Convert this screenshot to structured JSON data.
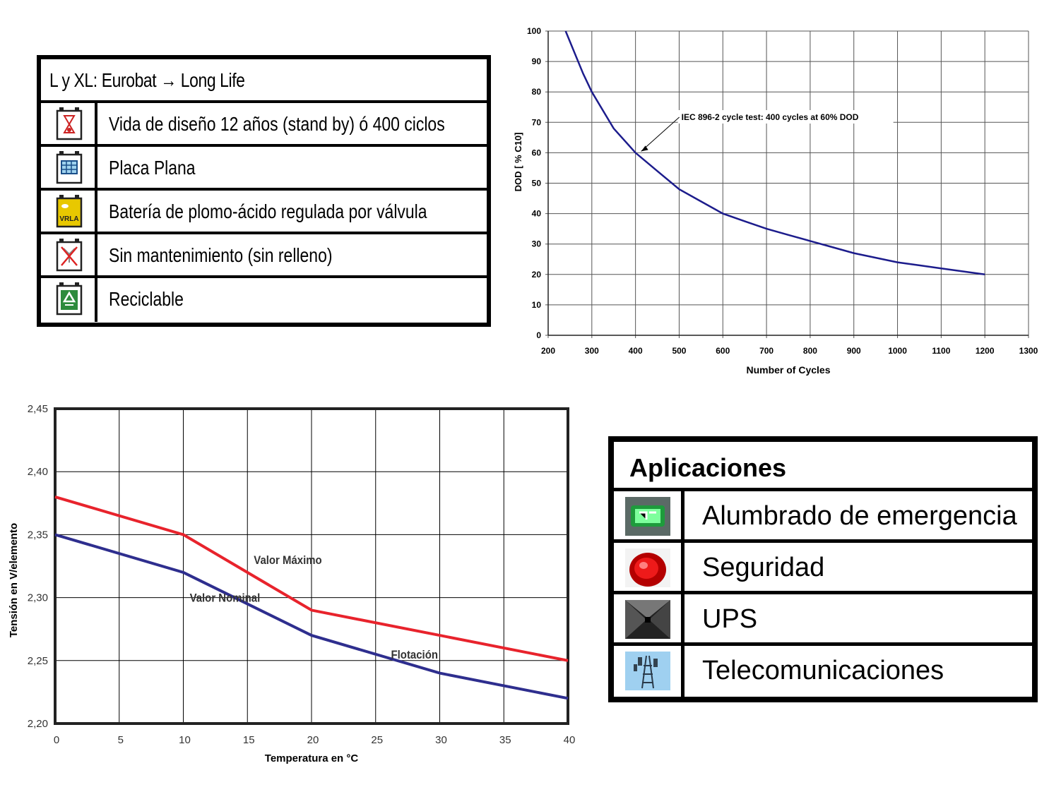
{
  "features": {
    "title": "L y XL: Eurobat → Long Life",
    "rows": [
      {
        "icon": "hourglass-icon",
        "label": "Vida de diseño 12 años (stand by) ó 400 ciclos"
      },
      {
        "icon": "flat-plate-icon",
        "label": "Placa Plana"
      },
      {
        "icon": "vrla-icon",
        "icon_text": "VRLA",
        "label": "Batería de plomo-ácido regulada por válvula"
      },
      {
        "icon": "no-refill-icon",
        "label": "Sin mantenimiento (sin relleno)"
      },
      {
        "icon": "recycle-icon",
        "label": "Reciclable"
      }
    ]
  },
  "applications": {
    "title": "Aplicaciones",
    "rows": [
      {
        "icon": "emergency-light-photo",
        "label": "Alumbrado de emergencia"
      },
      {
        "icon": "security-beacon-photo",
        "label": "Seguridad"
      },
      {
        "icon": "ups-photo",
        "label": "UPS"
      },
      {
        "icon": "telecom-tower-photo",
        "label": "Telecomunicaciones"
      }
    ]
  },
  "chart_data": [
    {
      "type": "line",
      "title": "",
      "xlabel": "Number of Cycles",
      "ylabel": "DOD [ % C10]",
      "xlim": [
        200,
        1300
      ],
      "ylim": [
        0,
        100
      ],
      "x_ticks": [
        "200",
        "300",
        "400",
        "500",
        "600",
        "700",
        "800",
        "900",
        "1000",
        "1100",
        "1200",
        "1300"
      ],
      "y_ticks": [
        "0",
        "10",
        "20",
        "30",
        "40",
        "50",
        "60",
        "70",
        "80",
        "90",
        "100"
      ],
      "grid": true,
      "series": [
        {
          "color": "#1c1c8c",
          "x": [
            240,
            260,
            280,
            300,
            325,
            350,
            375,
            400,
            450,
            500,
            550,
            600,
            650,
            700,
            750,
            800,
            850,
            900,
            950,
            1000,
            1050,
            1100,
            1150,
            1200
          ],
          "y": [
            100,
            93,
            86,
            80,
            74,
            68,
            64,
            60,
            54,
            48,
            44,
            40,
            37.5,
            35,
            33,
            31,
            29,
            27,
            25.5,
            24,
            23,
            22,
            21,
            20
          ]
        }
      ],
      "annotation": {
        "text": "IEC 896-2 cycle test: 400 cycles at 60% DOD",
        "x": 400,
        "y": 60
      }
    },
    {
      "type": "line",
      "title": "",
      "xlabel": "Temperatura en °C",
      "ylabel": "Tensión en V/elemento",
      "xlim": [
        0,
        40
      ],
      "ylim": [
        2.2,
        2.45
      ],
      "x_ticks": [
        "0",
        "5",
        "10",
        "15",
        "20",
        "25",
        "30",
        "35",
        "40"
      ],
      "y_ticks": [
        "2,20",
        "2,25",
        "2,30",
        "2,35",
        "2,40",
        "2,45"
      ],
      "grid": true,
      "series": [
        {
          "name": "Valor Máximo",
          "color": "#e8232c",
          "x": [
            0,
            10,
            20,
            30,
            40
          ],
          "y": [
            2.38,
            2.35,
            2.29,
            2.27,
            2.25
          ]
        },
        {
          "name": "Valor Nominal",
          "color": "#2e2e8e",
          "x": [
            0,
            10,
            20,
            30,
            40
          ],
          "y": [
            2.35,
            2.32,
            2.27,
            2.24,
            2.22
          ]
        }
      ],
      "annotations": [
        {
          "text": "Valor Máximo",
          "x": 15.5,
          "y": 2.33
        },
        {
          "text": "Valor Nominal",
          "x": 10.5,
          "y": 2.3
        },
        {
          "text": "Flotación",
          "x": 26.2,
          "y": 2.255
        }
      ]
    }
  ]
}
